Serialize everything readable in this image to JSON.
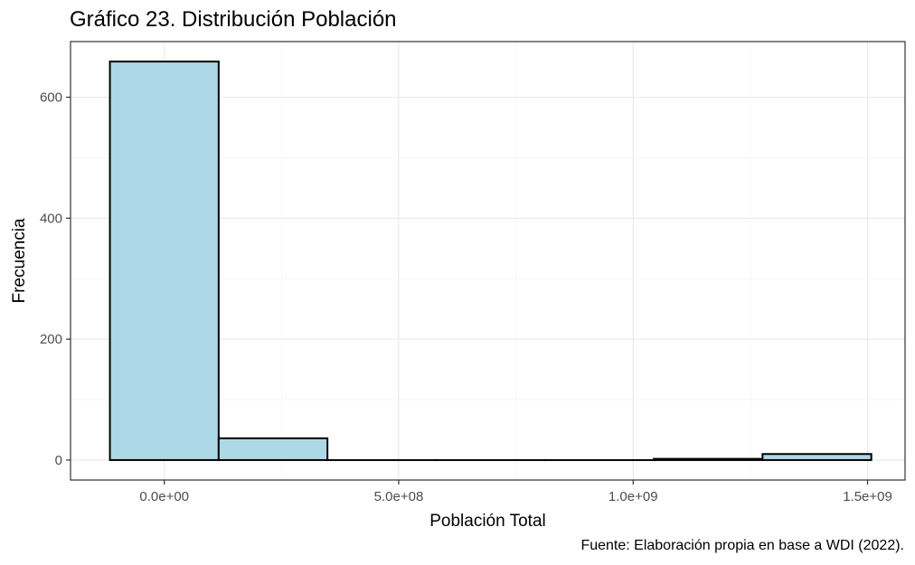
{
  "chart_data": {
    "type": "bar",
    "title": "Gráfico 23. Distribución Población",
    "xlabel": "Población Total",
    "ylabel": "Frecuencia",
    "caption": "Fuente: Elaboración propia en base a WDI (2022).",
    "bin_width": 232000000,
    "bins": [
      {
        "x_start": -116000000,
        "x_end": 116000000,
        "count": 659
      },
      {
        "x_start": 116000000,
        "x_end": 348000000,
        "count": 36
      },
      {
        "x_start": 348000000,
        "x_end": 580000000,
        "count": 0
      },
      {
        "x_start": 580000000,
        "x_end": 812000000,
        "count": 0
      },
      {
        "x_start": 812000000,
        "x_end": 1044000000,
        "count": 0
      },
      {
        "x_start": 1044000000,
        "x_end": 1276000000,
        "count": 2
      },
      {
        "x_start": 1276000000,
        "x_end": 1508000000,
        "count": 10
      }
    ],
    "xlim": [
      -200000000,
      1580000000
    ],
    "ylim": [
      -33,
      692
    ],
    "x_ticks": [
      0,
      500000000,
      1000000000,
      1500000000
    ],
    "x_tick_labels": [
      "0.0e+00",
      "5.0e+08",
      "1.0e+09",
      "1.5e+09"
    ],
    "y_ticks": [
      0,
      200,
      400,
      600
    ],
    "y_tick_labels": [
      "0",
      "200",
      "400",
      "600"
    ],
    "grid": true,
    "colors": {
      "fill": "#add8e6",
      "stroke": "#000000",
      "grid_major": "#ebebeb",
      "grid_minor": "#f5f5f5"
    }
  }
}
